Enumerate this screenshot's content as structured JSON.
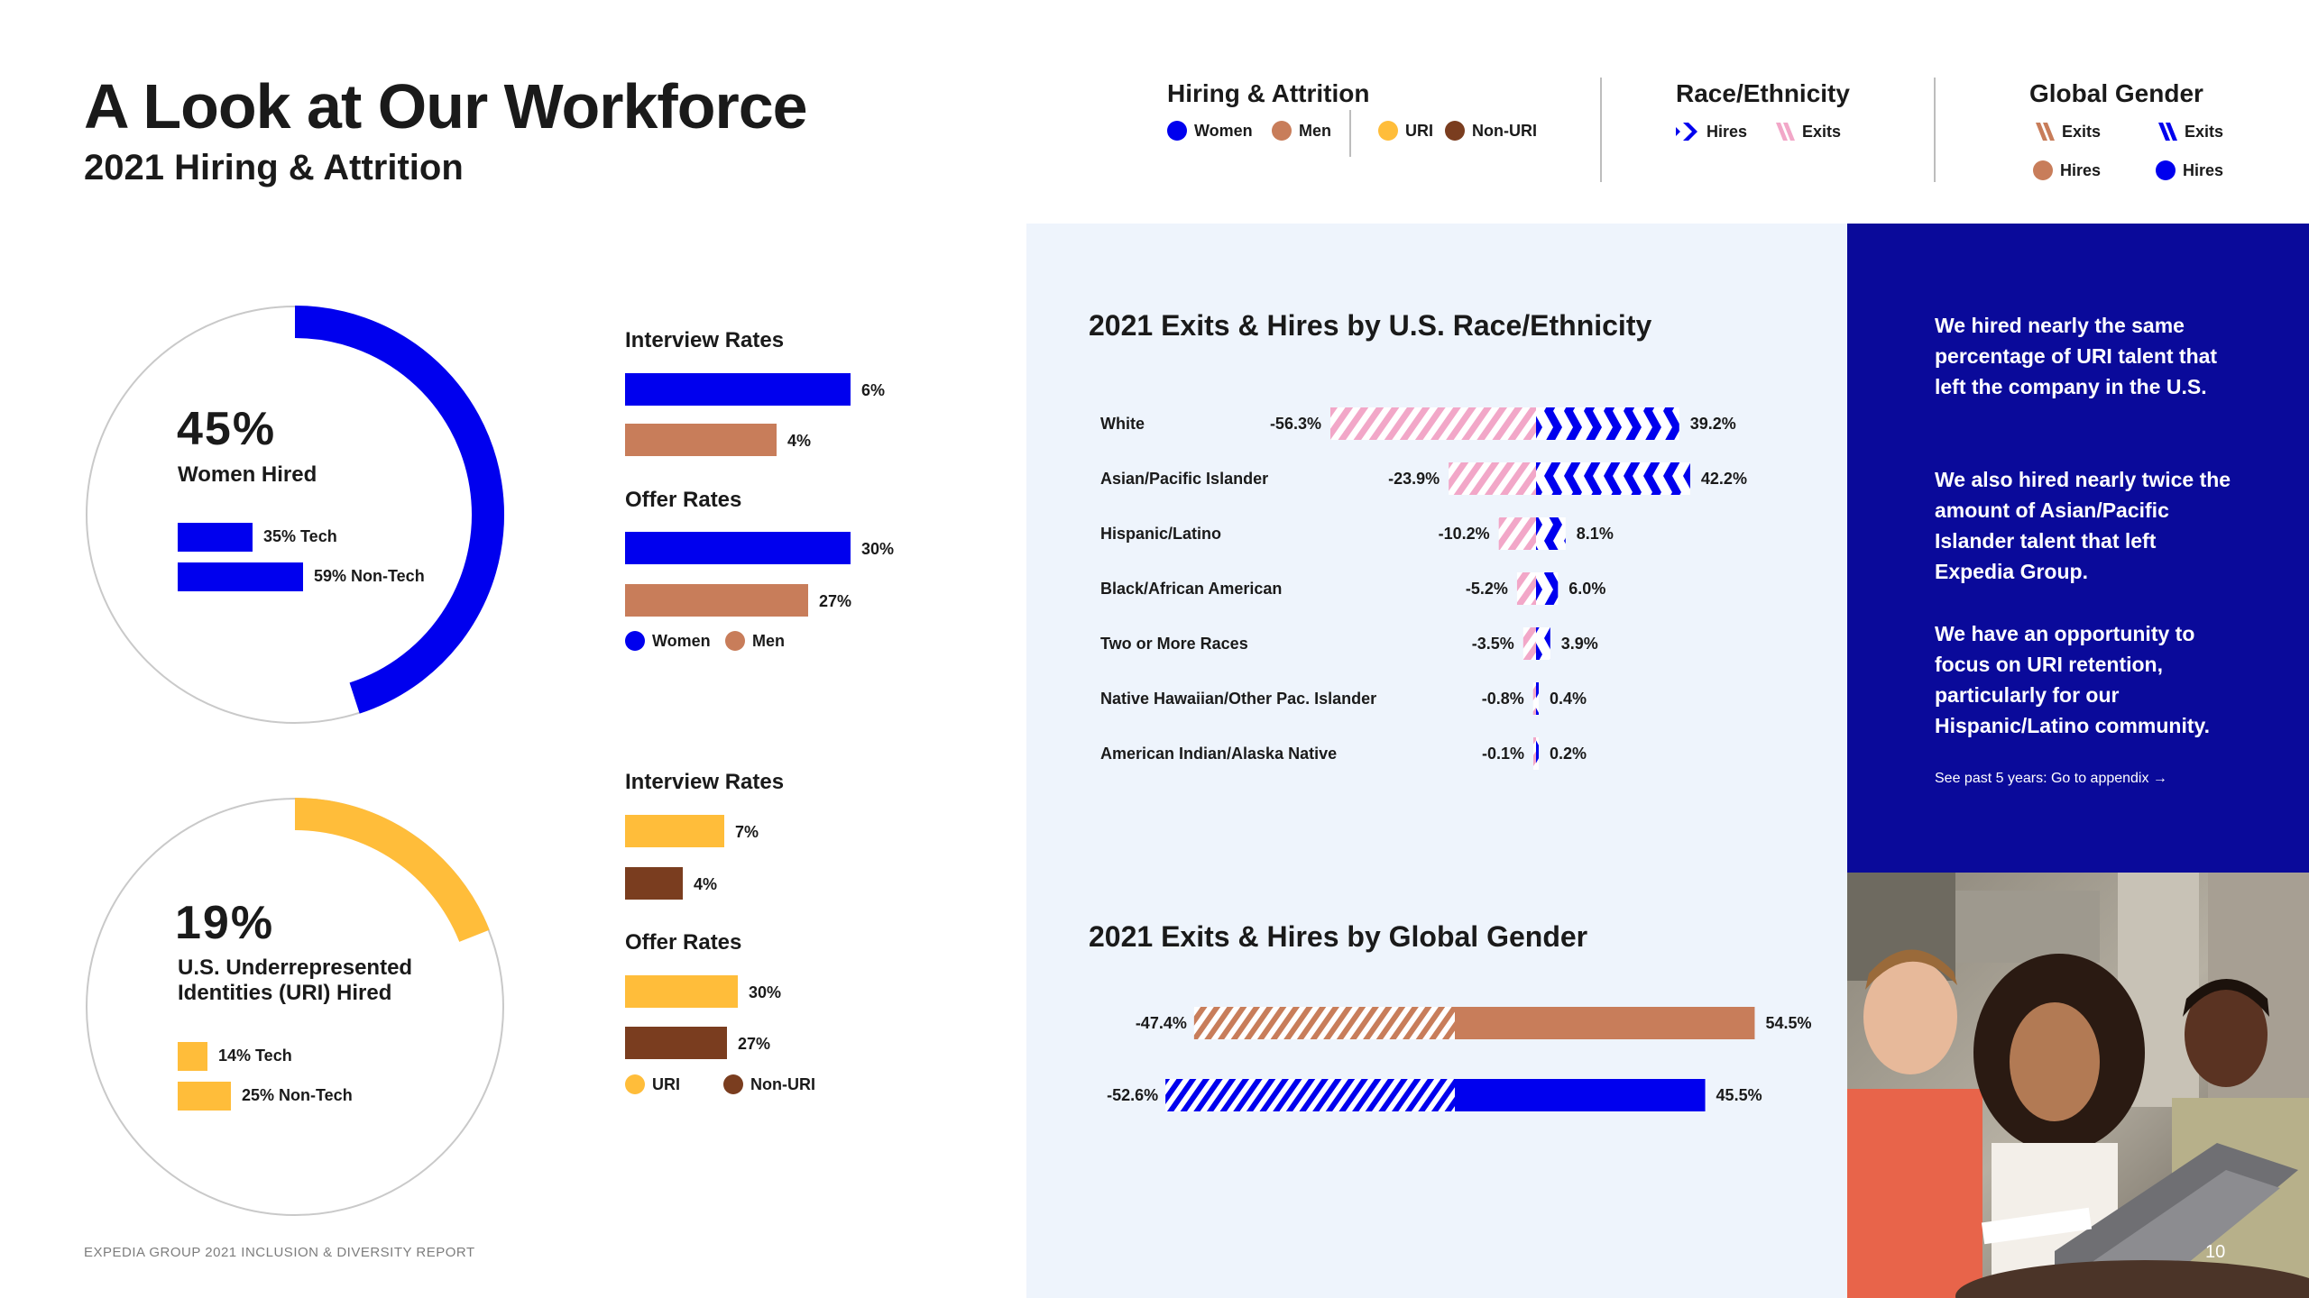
{
  "page": {
    "title": "A Look at Our Workforce",
    "subtitle": "2021 Hiring & Attrition",
    "footer": "EXPEDIA GROUP 2021 INCLUSION & DIVERSITY REPORT",
    "page_number": "10"
  },
  "legend": {
    "hiring": {
      "title": "Hiring & Attrition",
      "items": [
        "Women",
        "Men",
        "URI",
        "Non-URI"
      ]
    },
    "race": {
      "title": "Race/Ethnicity",
      "hires": "Hires",
      "exits": "Exits"
    },
    "gender": {
      "title": "Global Gender",
      "items": [
        "Exits",
        "Exits",
        "Hires",
        "Hires"
      ]
    }
  },
  "women_donut": {
    "value": 0.45,
    "pct": "45%",
    "label": "Women Hired",
    "tech": {
      "label": "35% Tech",
      "value": 0.35
    },
    "nontech": {
      "label": "59% Non-Tech",
      "value": 0.59
    }
  },
  "uri_donut": {
    "value": 0.19,
    "pct": "19%",
    "label_line1": "U.S. Underrepresented",
    "label_line2": "Identities (URI) Hired",
    "tech": {
      "label": "14% Tech",
      "value": 0.14
    },
    "nontech": {
      "label": "25% Non-Tech",
      "value": 0.25
    }
  },
  "women_rates": {
    "interview_title": "Interview Rates",
    "offer_title": "Offer Rates",
    "interview": {
      "women": 6,
      "women_label": "6%",
      "men": 4,
      "men_label": "4%"
    },
    "offer": {
      "women": 30,
      "women_label": "30%",
      "men": 27,
      "men_label": "27%"
    },
    "legend": [
      "Women",
      "Men"
    ]
  },
  "uri_rates": {
    "interview_title": "Interview Rates",
    "offer_title": "Offer Rates",
    "interview": {
      "uri": 7,
      "uri_label": "7%",
      "nonuri": 4,
      "nonuri_label": "4%"
    },
    "offer": {
      "uri": 30,
      "uri_label": "30%",
      "nonuri": 27,
      "nonuri_label": "27%"
    },
    "legend": [
      "URI",
      "Non-URI"
    ]
  },
  "colors": {
    "women": "#0000ee",
    "men": "#c87d5a",
    "uri": "#ffbd3a",
    "nonuri": "#7a3d1f",
    "race_exits": "#f2a7c8",
    "navy": "#0a0a9a"
  },
  "chart_data": [
    {
      "type": "bar",
      "title": "2021 Exits & Hires by U.S. Race/Ethnicity",
      "categories": [
        "White",
        "Asian/Pacific Islander",
        "Hispanic/Latino",
        "Black/African American",
        "Two or More Races",
        "Native Hawaiian/Other Pac. Islander",
        "American Indian/Alaska Native"
      ],
      "series": [
        {
          "name": "Exits",
          "values": [
            -56.3,
            -23.9,
            -10.2,
            -5.2,
            -3.5,
            -0.8,
            -0.1
          ],
          "labels": [
            "-56.3%",
            "-23.9%",
            "-10.2%",
            "-5.2%",
            "-3.5%",
            "-0.8%",
            "-0.1%"
          ]
        },
        {
          "name": "Hires",
          "values": [
            39.2,
            42.2,
            8.1,
            6.0,
            3.9,
            0.4,
            0.2
          ],
          "labels": [
            "39.2%",
            "42.2%",
            "8.1%",
            "6.0%",
            "3.9%",
            "0.4%",
            "0.2%"
          ]
        }
      ]
    },
    {
      "type": "bar",
      "title": "2021 Exits & Hires by Global Gender",
      "rows": [
        {
          "exits": -47.4,
          "exits_label": "-47.4%",
          "hires": 54.5,
          "hires_label": "54.5%",
          "color": "#c87d5a"
        },
        {
          "exits": -52.6,
          "exits_label": "-52.6%",
          "hires": 45.5,
          "hires_label": "45.5%",
          "color": "#0000ee"
        }
      ]
    }
  ],
  "callout": {
    "p1": "We hired nearly the same percentage of URI talent that left the company in the U.S.",
    "p2": "We also hired nearly twice the amount of Asian/Pacific Islander talent that left Expedia Group.",
    "p3": "We have an opportunity to focus on URI retention, particularly for our Hispanic/Latino community.",
    "link": "See past 5 years: Go to appendix →"
  }
}
